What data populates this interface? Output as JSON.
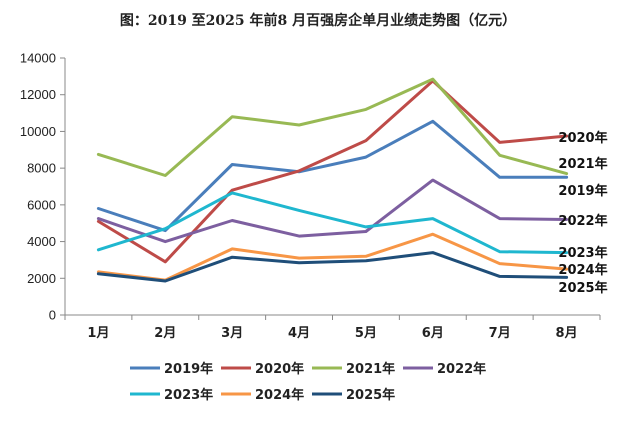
{
  "chart_data": {
    "type": "line",
    "title": "图：2019 至2025 年前8 月百强房企单月业绩走势图（亿元）",
    "xlabel": "",
    "ylabel": "",
    "categories": [
      "1月",
      "2月",
      "3月",
      "4月",
      "5月",
      "6月",
      "7月",
      "8月"
    ],
    "ylim": [
      0,
      14000
    ],
    "yticks": [
      0,
      2000,
      4000,
      6000,
      8000,
      10000,
      12000,
      14000
    ],
    "grid": false,
    "legend_position": "bottom",
    "series": [
      {
        "name": "2019年",
        "color": "#4a7ebb",
        "values": [
          5800,
          4600,
          8200,
          7800,
          8600,
          10550,
          7500,
          7500
        ]
      },
      {
        "name": "2020年",
        "color": "#be4b48",
        "values": [
          5100,
          2900,
          6800,
          7850,
          9500,
          12750,
          9400,
          9750
        ]
      },
      {
        "name": "2021年",
        "color": "#98b954",
        "values": [
          8750,
          7600,
          10800,
          10350,
          11200,
          12850,
          8700,
          7700
        ]
      },
      {
        "name": "2022年",
        "color": "#7d5fa0",
        "values": [
          5250,
          4000,
          5150,
          4300,
          4550,
          7350,
          5250,
          5200
        ]
      },
      {
        "name": "2023年",
        "color": "#1fb7cf",
        "values": [
          3550,
          4700,
          6650,
          5700,
          4800,
          5250,
          3450,
          3400
        ]
      },
      {
        "name": "2024年",
        "color": "#f79646",
        "values": [
          2350,
          1900,
          3600,
          3100,
          3200,
          4400,
          2800,
          2500
        ]
      },
      {
        "name": "2025年",
        "color": "#1f4e79",
        "values": [
          2250,
          1850,
          3150,
          2850,
          2950,
          3400,
          2100,
          2050
        ]
      }
    ],
    "end_labels": [
      "2020年",
      "2021年",
      "2019年",
      "2022年",
      "2023年",
      "2024年",
      "2025年"
    ]
  }
}
